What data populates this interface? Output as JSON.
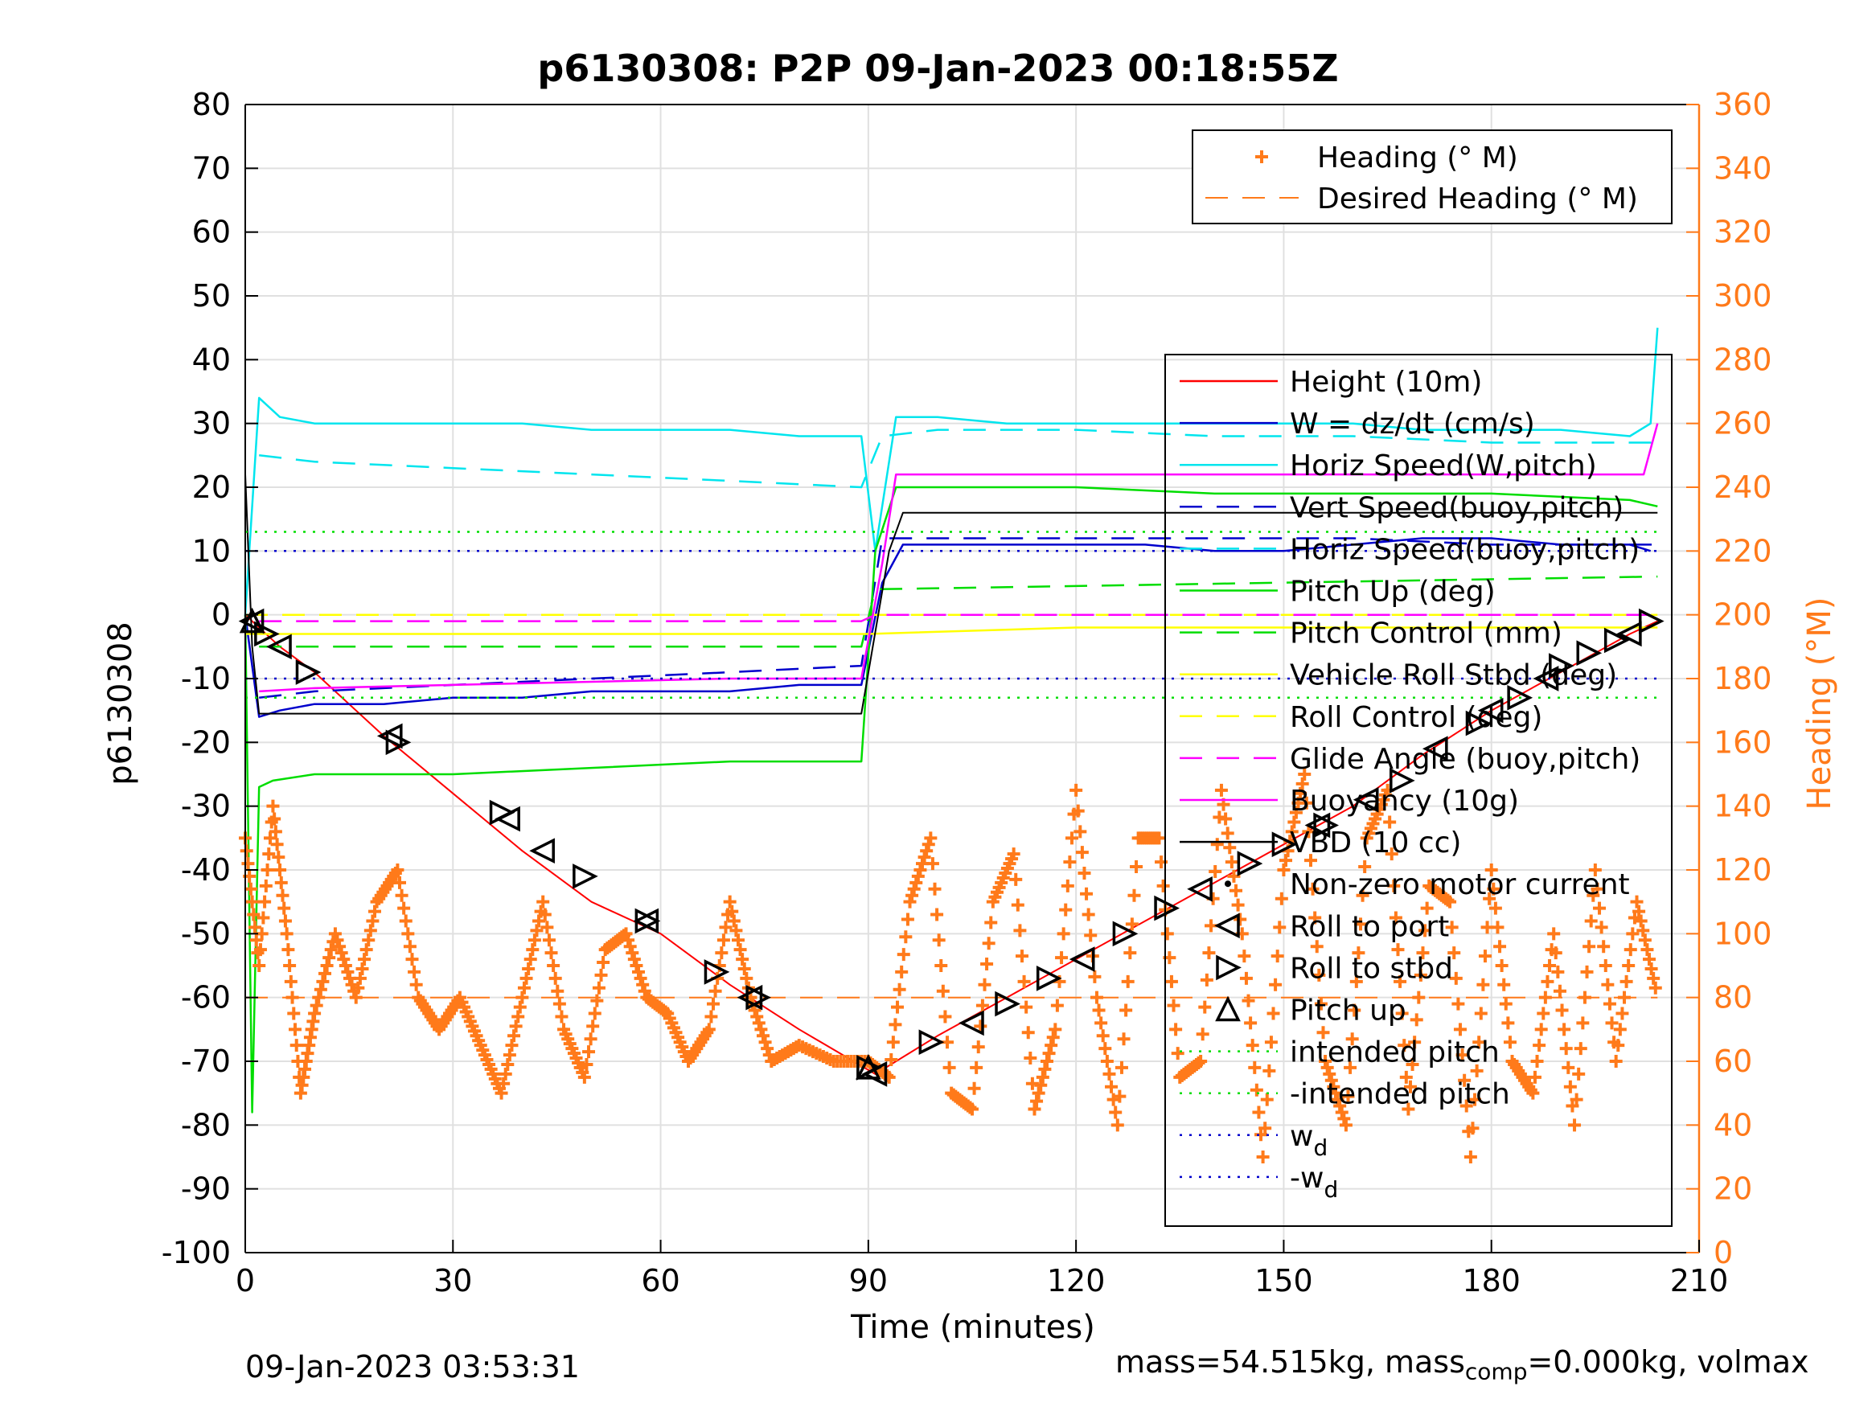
{
  "chart_data": {
    "type": "line",
    "title": "p6130308: P2P 09-Jan-2023 00:18:55Z",
    "xlabel": "Time (minutes)",
    "ylabel_left": "p6130308",
    "ylabel_right": "Heading (°M)",
    "xlim": [
      0,
      210
    ],
    "ylim_left": [
      -100,
      80
    ],
    "ylim_right": [
      0,
      360
    ],
    "xticks": [
      0,
      30,
      60,
      90,
      120,
      150,
      180,
      210
    ],
    "yticks_left": [
      -100,
      -90,
      -80,
      -70,
      -60,
      -50,
      -40,
      -30,
      -20,
      -10,
      0,
      10,
      20,
      30,
      40,
      50,
      60,
      70,
      80
    ],
    "yticks_right": [
      0,
      20,
      40,
      60,
      80,
      100,
      120,
      140,
      160,
      180,
      200,
      220,
      240,
      260,
      280,
      300,
      320,
      340,
      360
    ],
    "grid": true,
    "colors": {
      "height": "#ff0000",
      "w": "#0000cc",
      "horiz_speed": "#00e5ee",
      "pitch": "#00dd00",
      "roll": "#ffff00",
      "glide": "#ff00ff",
      "vbd": "#000000",
      "heading": "#ff7a1a",
      "markers": "#000000"
    },
    "legend_heading": {
      "placement": "top-right",
      "entries": [
        "Heading (° M)",
        "Desired Heading (° M)"
      ]
    },
    "legend_main": {
      "placement": "right",
      "entries": [
        "Height (10m)",
        "W = dz/dt (cm/s)",
        "Horiz Speed(W,pitch)",
        "Vert Speed(buoy,pitch)",
        "Horiz Speed(buoy,pitch)",
        "Pitch Up (deg)",
        "Pitch Control (mm)",
        "Vehicle Roll Stbd (deg)",
        "Roll Control (deg)",
        "Glide Angle (buoy,pitch)",
        "Buoyancy (10g)",
        "VBD (10 cc)",
        "Non-zero motor current",
        "Roll to port",
        "Roll to stbd",
        "Pitch up",
        "intended pitch",
        "-intended pitch",
        "w_d",
        "-w_d"
      ]
    },
    "series": [
      {
        "name": "Height (10m)",
        "axis": "left",
        "style": "solid",
        "x": [
          0,
          5,
          10,
          20,
          30,
          40,
          50,
          60,
          70,
          80,
          91,
          100,
          110,
          120,
          130,
          140,
          150,
          160,
          170,
          180,
          190,
          200,
          204
        ],
        "y": [
          0,
          -5,
          -9,
          -19,
          -28,
          -37,
          -45,
          -50,
          -58,
          -65,
          -72,
          -66,
          -60,
          -54,
          -48,
          -42,
          -36,
          -30,
          -22,
          -15,
          -9,
          -3,
          -1
        ]
      },
      {
        "name": "W = dz/dt (cm/s)",
        "axis": "left",
        "style": "solid",
        "x": [
          0,
          2,
          5,
          10,
          20,
          30,
          40,
          50,
          60,
          70,
          80,
          89,
          92,
          95,
          100,
          110,
          120,
          130,
          140,
          150,
          160,
          170,
          180,
          190,
          200,
          203
        ],
        "y": [
          0,
          -16,
          -15,
          -14,
          -14,
          -13,
          -13,
          -12,
          -12,
          -12,
          -11,
          -11,
          5,
          11,
          11,
          11,
          11,
          11,
          10,
          10,
          11,
          12,
          12,
          11,
          11,
          10
        ]
      },
      {
        "name": "Horiz Speed(W,pitch)",
        "axis": "left",
        "style": "solid",
        "x": [
          0,
          2,
          5,
          10,
          20,
          30,
          40,
          50,
          60,
          70,
          80,
          89,
          91,
          94,
          100,
          110,
          120,
          130,
          140,
          150,
          160,
          170,
          180,
          190,
          200,
          203,
          204
        ],
        "y": [
          0,
          34,
          31,
          30,
          30,
          30,
          30,
          29,
          29,
          29,
          28,
          28,
          10,
          31,
          31,
          30,
          30,
          30,
          30,
          30,
          30,
          29,
          29,
          29,
          28,
          30,
          45
        ]
      },
      {
        "name": "Vert Speed(buoy,pitch)",
        "axis": "left",
        "style": "dashed",
        "x": [
          2,
          10,
          30,
          50,
          70,
          89,
          92,
          100,
          120,
          140,
          160,
          180,
          200,
          204
        ],
        "y": [
          -13,
          -12,
          -11,
          -10,
          -9,
          -8,
          12,
          12,
          12,
          12,
          12,
          11,
          11,
          11
        ]
      },
      {
        "name": "Horiz Speed(buoy,pitch)",
        "axis": "left",
        "style": "dashed",
        "x": [
          2,
          10,
          30,
          50,
          70,
          89,
          92,
          100,
          120,
          140,
          160,
          180,
          200,
          204
        ],
        "y": [
          25,
          24,
          23,
          22,
          21,
          20,
          28,
          29,
          29,
          28,
          28,
          27,
          27,
          27
        ]
      },
      {
        "name": "Pitch Up (deg)",
        "axis": "left",
        "style": "solid",
        "x": [
          0,
          1,
          2,
          4,
          10,
          30,
          50,
          70,
          89,
          91,
          94,
          100,
          120,
          140,
          160,
          180,
          200,
          204
        ],
        "y": [
          0,
          -78,
          -27,
          -26,
          -25,
          -25,
          -24,
          -23,
          -23,
          10,
          20,
          20,
          20,
          19,
          19,
          19,
          18,
          17
        ]
      },
      {
        "name": "Pitch Control (mm)",
        "axis": "left",
        "style": "dashed",
        "x": [
          2,
          89,
          91,
          204
        ],
        "y": [
          -5,
          -5,
          4,
          6
        ]
      },
      {
        "name": "Vehicle Roll Stbd (deg)",
        "axis": "left",
        "style": "solid",
        "x": [
          0,
          30,
          60,
          90,
          120,
          150,
          180,
          204
        ],
        "y": [
          -3,
          -3,
          -3,
          -3,
          -2,
          -2,
          -2,
          -2
        ]
      },
      {
        "name": "Roll Control (deg)",
        "axis": "left",
        "style": "dashed",
        "x": [
          0,
          204
        ],
        "y": [
          0,
          0
        ]
      },
      {
        "name": "Glide Angle (buoy,pitch)",
        "axis": "left",
        "style": "dashed",
        "x": [
          2,
          89,
          91,
          204
        ],
        "y": [
          -1,
          -1,
          0,
          0
        ]
      },
      {
        "name": "Buoyancy (10g)",
        "axis": "left",
        "style": "solid",
        "x": [
          2,
          10,
          30,
          50,
          70,
          89,
          92,
          94,
          120,
          150,
          180,
          202,
          204
        ],
        "y": [
          -12,
          -11.5,
          -11,
          -10.5,
          -10,
          -10,
          8,
          22,
          22,
          22,
          22,
          22,
          30
        ]
      },
      {
        "name": "VBD (10 cc)",
        "axis": "left",
        "style": "solid",
        "x": [
          0,
          1,
          2,
          89,
          93,
          95,
          204
        ],
        "y": [
          22,
          -5,
          -15.5,
          -15.5,
          10,
          16,
          16
        ]
      },
      {
        "name": "intended pitch",
        "axis": "left",
        "style": "dotted",
        "x": [
          0,
          204
        ],
        "y": [
          13,
          13
        ]
      },
      {
        "name": "-intended pitch",
        "axis": "left",
        "style": "dotted",
        "x": [
          0,
          204
        ],
        "y": [
          -13,
          -13
        ]
      },
      {
        "name": "w_d",
        "axis": "left",
        "style": "dotted",
        "x": [
          0,
          204
        ],
        "y": [
          10,
          10
        ]
      },
      {
        "name": "-w_d",
        "axis": "left",
        "style": "dotted",
        "x": [
          0,
          204
        ],
        "y": [
          -10,
          -10
        ]
      },
      {
        "name": "Desired Heading (° M)",
        "axis": "right",
        "style": "dashed",
        "x": [
          0,
          204
        ],
        "y": [
          80,
          80
        ]
      },
      {
        "name": "Heading (° M)",
        "axis": "right",
        "style": "markers",
        "x": [
          0,
          2,
          4,
          6,
          8,
          10,
          13,
          16,
          19,
          22,
          25,
          28,
          31,
          34,
          37,
          40,
          43,
          46,
          49,
          52,
          55,
          58,
          61,
          64,
          67,
          70,
          73,
          76,
          80,
          85,
          90,
          93,
          96,
          99,
          102,
          105,
          108,
          111,
          114,
          117,
          120,
          123,
          126,
          129,
          132,
          135,
          138,
          141,
          144,
          147,
          150,
          153,
          156,
          159,
          162,
          165,
          168,
          171,
          174,
          177,
          180,
          183,
          186,
          189,
          192,
          195,
          198,
          201,
          204
        ],
        "y": [
          130,
          90,
          140,
          100,
          50,
          75,
          100,
          80,
          110,
          120,
          80,
          70,
          80,
          65,
          50,
          80,
          110,
          70,
          55,
          95,
          100,
          80,
          75,
          60,
          70,
          110,
          80,
          60,
          65,
          60,
          60,
          55,
          110,
          130,
          50,
          45,
          110,
          125,
          45,
          70,
          145,
          80,
          40,
          130,
          130,
          55,
          60,
          145,
          100,
          30,
          120,
          150,
          60,
          40,
          130,
          145,
          45,
          115,
          110,
          30,
          120,
          60,
          50,
          100,
          40,
          120,
          60,
          110,
          80
        ]
      },
      {
        "name": "Roll to port",
        "axis": "left",
        "style": "markers",
        "x": [
          1,
          5,
          21,
          38,
          43,
          58,
          73,
          91,
          105,
          121,
          138,
          155,
          162,
          172,
          180,
          188,
          200
        ],
        "y": [
          -1,
          -5,
          -19,
          -32,
          -37,
          -48,
          -60,
          -72,
          -64,
          -54,
          -43,
          -33,
          -29,
          -21,
          -15,
          -10,
          -3
        ]
      },
      {
        "name": "Roll to stbd",
        "axis": "left",
        "style": "markers",
        "x": [
          3,
          9,
          22,
          37,
          49,
          58,
          68,
          74,
          90,
          99,
          110,
          116,
          127,
          133,
          145,
          150,
          156,
          167,
          178,
          184,
          190,
          194,
          198,
          203
        ],
        "y": [
          -3,
          -9,
          -20,
          -31,
          -41,
          -48,
          -56,
          -60,
          -71,
          -67,
          -61,
          -57,
          -50,
          -46,
          -39,
          -36,
          -33,
          -26,
          -17,
          -13,
          -8,
          -6,
          -4,
          -1
        ]
      },
      {
        "name": "Pitch up",
        "axis": "left",
        "style": "markers",
        "x": [
          1,
          90
        ],
        "y": [
          -1,
          -71
        ]
      }
    ]
  },
  "footer": {
    "timestamp": "09-Jan-2023 03:53:31",
    "mass_text": "mass=54.515kg, mass",
    "mass_sub": "comp",
    "mass_text2": "=0.000kg, volmax"
  }
}
